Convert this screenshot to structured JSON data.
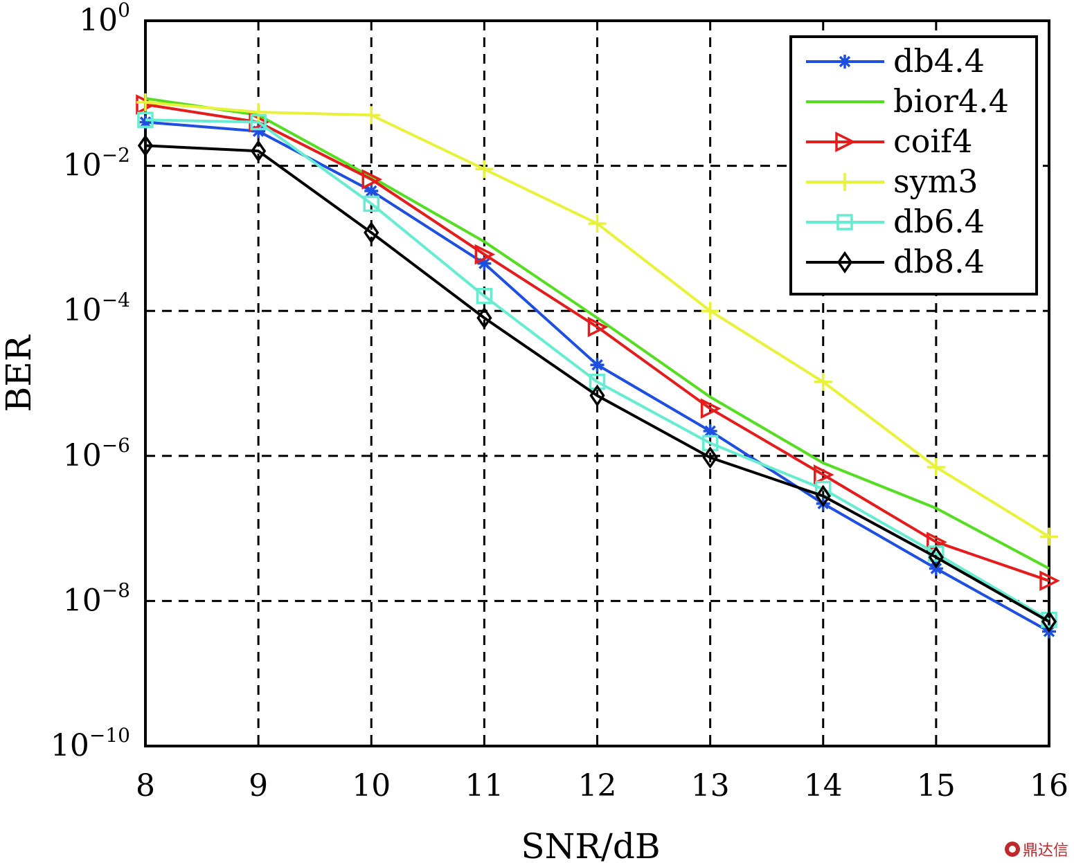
{
  "chart_data": {
    "type": "line",
    "title": "",
    "xlabel": "SNR/dB",
    "ylabel": "BER",
    "yscale": "log",
    "x": [
      8,
      9,
      10,
      11,
      12,
      13,
      14,
      15,
      16
    ],
    "xlim": [
      8,
      16
    ],
    "ylim": [
      1e-10,
      1
    ],
    "xticks": [
      "8",
      "9",
      "10",
      "11",
      "12",
      "13",
      "14",
      "15",
      "16"
    ],
    "yticks": [
      {
        "value": 1,
        "base": "10",
        "exp": "0"
      },
      {
        "value": 0.01,
        "base": "10",
        "exp": "−2"
      },
      {
        "value": 0.0001,
        "base": "10",
        "exp": "−4"
      },
      {
        "value": 1e-06,
        "base": "10",
        "exp": "−6"
      },
      {
        "value": 1e-08,
        "base": "10",
        "exp": "−8"
      },
      {
        "value": 1e-10,
        "base": "10",
        "exp": "−10"
      }
    ],
    "grid": true,
    "legend_position": "top-right",
    "series": [
      {
        "name": "db4.4",
        "color": "#1f4fe0",
        "marker": "star",
        "values": [
          0.04,
          0.03,
          0.0045,
          0.00045,
          1.8e-05,
          2.2e-06,
          2.2e-07,
          2.8e-08,
          3.8e-09
        ]
      },
      {
        "name": "bior4.4",
        "color": "#55dd22",
        "marker": "none",
        "values": [
          0.085,
          0.05,
          0.007,
          0.0009,
          8e-05,
          6.5e-06,
          8e-07,
          1.9e-07,
          2.8e-08
        ]
      },
      {
        "name": "coif4",
        "color": "#e51c1c",
        "marker": "triangle-right",
        "values": [
          0.07,
          0.04,
          0.0065,
          0.0006,
          6e-05,
          4.5e-06,
          5.5e-07,
          6.5e-08,
          1.9e-08
        ]
      },
      {
        "name": "sym3",
        "color": "#e9f23a",
        "marker": "plus",
        "values": [
          0.075,
          0.055,
          0.05,
          0.009,
          0.0016,
          0.0001,
          1.05e-05,
          7e-07,
          7.7e-08
        ]
      },
      {
        "name": "db6.4",
        "color": "#66ecd0",
        "marker": "square",
        "values": [
          0.043,
          0.04,
          0.003,
          0.00016,
          1.05e-05,
          1.5e-06,
          3.5e-07,
          4.5e-08,
          5.5e-09
        ]
      },
      {
        "name": "db8.4",
        "color": "#000000",
        "marker": "diamond",
        "values": [
          0.019,
          0.016,
          0.0012,
          8e-05,
          6.8e-06,
          9.5e-07,
          2.8e-07,
          4e-08,
          5.2e-09
        ]
      }
    ]
  },
  "watermark": {
    "text": "鼎达信",
    "icon": "brand-logo-icon"
  }
}
